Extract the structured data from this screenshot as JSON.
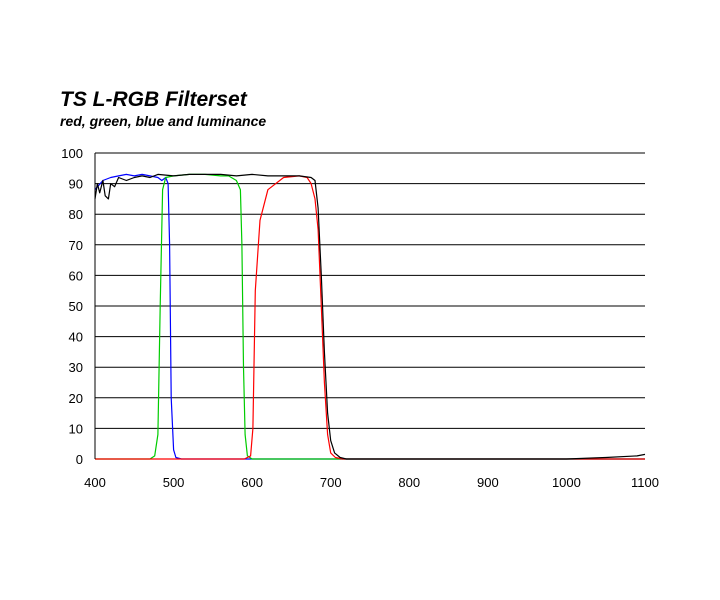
{
  "chart_data": {
    "type": "line",
    "title": "TS L-RGB Filterset",
    "subtitle": "red, green, blue and luminance",
    "xlim": [
      400,
      1100
    ],
    "ylim": [
      0,
      100
    ],
    "x_ticks": [
      "400",
      "500",
      "600",
      "700",
      "800",
      "900",
      "1000",
      "1100"
    ],
    "y_ticks": [
      "0",
      "10",
      "20",
      "30",
      "40",
      "50",
      "60",
      "70",
      "80",
      "90",
      "100"
    ],
    "grid": "horizontal",
    "legend": "none",
    "series": [
      {
        "color": "#0000ff",
        "x": [
          400,
          410,
          420,
          430,
          440,
          450,
          460,
          470,
          480,
          485,
          490,
          493,
          495,
          497,
          500,
          503,
          510,
          550,
          600,
          700,
          800,
          900,
          1000,
          1100
        ],
        "y": [
          88,
          91,
          92,
          92.5,
          93,
          92.5,
          93,
          92.5,
          92,
          91,
          92,
          90,
          70,
          20,
          3,
          0.5,
          0,
          0,
          0,
          0,
          0,
          0,
          0,
          0
        ]
      },
      {
        "color": "#00cc00",
        "x": [
          400,
          470,
          476,
          480,
          483,
          486,
          490,
          500,
          520,
          540,
          560,
          570,
          580,
          585,
          587,
          589,
          591,
          594,
          600,
          700,
          800,
          900,
          1000,
          1100
        ],
        "y": [
          0,
          0,
          1,
          8,
          50,
          88,
          92,
          92.5,
          93,
          93,
          92.5,
          92.5,
          91,
          88,
          70,
          30,
          8,
          1,
          0,
          0,
          0,
          0,
          0,
          0
        ]
      },
      {
        "color": "#ff0000",
        "x": [
          400,
          500,
          590,
          598,
          601,
          604,
          610,
          620,
          640,
          660,
          670,
          675,
          680,
          684,
          688,
          692,
          696,
          700,
          706,
          715,
          800,
          900,
          1000,
          1100
        ],
        "y": [
          0,
          0,
          0,
          1,
          10,
          55,
          78,
          88,
          92,
          92.5,
          92,
          90,
          85,
          75,
          50,
          25,
          8,
          2,
          0.5,
          0,
          0,
          0,
          0,
          0
        ]
      },
      {
        "color": "#000000",
        "x": [
          400,
          403,
          406,
          410,
          413,
          417,
          420,
          425,
          430,
          440,
          450,
          460,
          470,
          480,
          500,
          520,
          540,
          560,
          580,
          600,
          620,
          640,
          660,
          675,
          680,
          684,
          688,
          692,
          696,
          700,
          705,
          712,
          720,
          740,
          800,
          900,
          1000,
          1050,
          1090,
          1100
        ],
        "y": [
          85,
          90,
          87,
          91,
          86,
          85,
          90,
          89,
          92,
          91,
          92,
          92.5,
          92,
          93,
          92.5,
          93,
          93,
          93,
          92.5,
          93,
          92.5,
          92.5,
          92.5,
          92,
          91,
          82,
          60,
          35,
          15,
          6,
          2,
          0.5,
          0,
          0,
          0,
          0,
          0,
          0.5,
          1,
          1.5
        ]
      }
    ]
  }
}
